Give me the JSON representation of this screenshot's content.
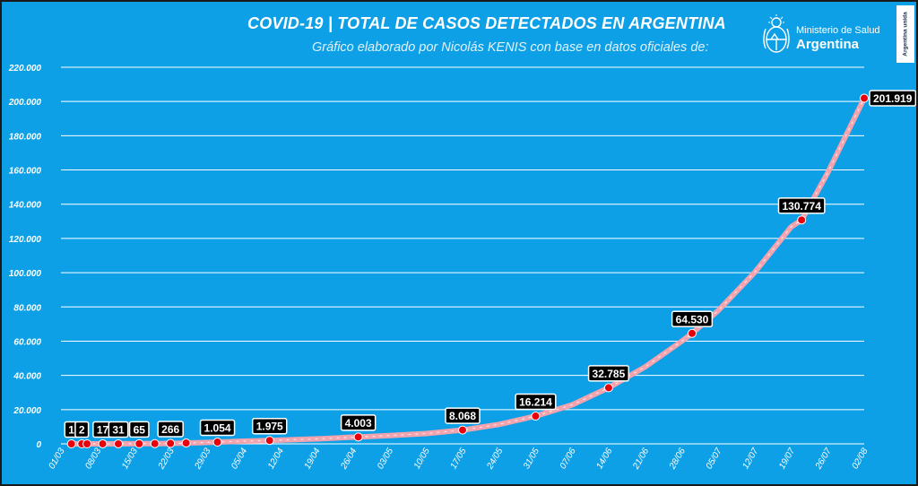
{
  "header": {
    "title": "COVID-19  |  TOTAL DE CASOS DETECTADOS EN ARGENTINA",
    "subtitle": "Gráfico elaborado por Nicolás KENIS con base en datos oficiales de:"
  },
  "logo": {
    "line1": "Ministerio de Salud",
    "line2": "Argentina",
    "icon": "argentina-coat-of-arms-icon"
  },
  "badge": {
    "text": "Argentina unida"
  },
  "colors": {
    "background": "#0ea0e6",
    "line": "#f3a3ad",
    "marker": "#e8000b",
    "label_box": "#000000",
    "grid": "#ffffff"
  },
  "chart_data": {
    "type": "line",
    "title": "COVID-19 | TOTAL DE CASOS DETECTADOS EN ARGENTINA",
    "xlabel": "",
    "ylabel": "",
    "ylim": [
      0,
      220000
    ],
    "y_ticks": [
      "0",
      "20.000",
      "40.000",
      "60.000",
      "80.000",
      "100.000",
      "120.000",
      "140.000",
      "160.000",
      "180.000",
      "200.000",
      "220.000"
    ],
    "x_range": [
      "01/03",
      "02/08"
    ],
    "x_ticks": [
      "01/03",
      "08/03",
      "15/03",
      "22/03",
      "29/03",
      "05/04",
      "12/04",
      "19/04",
      "26/04",
      "03/05",
      "10/05",
      "17/05",
      "24/05",
      "31/05",
      "07/06",
      "14/06",
      "21/06",
      "28/06",
      "05/07",
      "12/07",
      "19/07",
      "26/07",
      "02/08"
    ],
    "grid": true,
    "legend": "none",
    "series": [
      {
        "points": [
          {
            "x": "03/03",
            "y": 1
          },
          {
            "x": "05/03",
            "y": 2
          },
          {
            "x": "06/03",
            "y": 8
          },
          {
            "x": "07/03",
            "y": 9
          },
          {
            "x": "08/03",
            "y": 12
          },
          {
            "x": "09/03",
            "y": 17
          },
          {
            "x": "10/03",
            "y": 19
          },
          {
            "x": "11/03",
            "y": 21
          },
          {
            "x": "12/03",
            "y": 31
          },
          {
            "x": "13/03",
            "y": 34
          },
          {
            "x": "14/03",
            "y": 45
          },
          {
            "x": "15/03",
            "y": 56
          },
          {
            "x": "16/03",
            "y": 65
          },
          {
            "x": "17/03",
            "y": 79
          },
          {
            "x": "18/03",
            "y": 97
          },
          {
            "x": "19/03",
            "y": 128
          },
          {
            "x": "20/03",
            "y": 158
          },
          {
            "x": "21/03",
            "y": 225
          },
          {
            "x": "22/03",
            "y": 266
          },
          {
            "x": "23/03",
            "y": 301
          },
          {
            "x": "24/03",
            "y": 387
          },
          {
            "x": "25/03",
            "y": 502
          },
          {
            "x": "26/03",
            "y": 589
          },
          {
            "x": "27/03",
            "y": 690
          },
          {
            "x": "28/03",
            "y": 745
          },
          {
            "x": "29/03",
            "y": 820
          },
          {
            "x": "30/03",
            "y": 966
          },
          {
            "x": "31/03",
            "y": 1054
          },
          {
            "x": "05/04",
            "y": 1554
          },
          {
            "x": "10/04",
            "y": 1975
          },
          {
            "x": "15/04",
            "y": 2443
          },
          {
            "x": "20/04",
            "y": 3031
          },
          {
            "x": "25/04",
            "y": 3780
          },
          {
            "x": "27/04",
            "y": 4003
          },
          {
            "x": "03/05",
            "y": 4887
          },
          {
            "x": "10/05",
            "y": 6034
          },
          {
            "x": "17/05",
            "y": 8068
          },
          {
            "x": "24/05",
            "y": 11353
          },
          {
            "x": "31/05",
            "y": 16214
          },
          {
            "x": "07/06",
            "y": 22794
          },
          {
            "x": "14/06",
            "y": 32785
          },
          {
            "x": "21/06",
            "y": 44931
          },
          {
            "x": "28/06",
            "y": 59933
          },
          {
            "x": "30/06",
            "y": 64530
          },
          {
            "x": "05/07",
            "y": 77815
          },
          {
            "x": "12/07",
            "y": 100166
          },
          {
            "x": "19/07",
            "y": 126755
          },
          {
            "x": "21/07",
            "y": 130774
          },
          {
            "x": "26/07",
            "y": 158334
          },
          {
            "x": "02/08",
            "y": 201919
          }
        ]
      }
    ],
    "markers": [
      {
        "x": "03/03",
        "y": 1
      },
      {
        "x": "05/03",
        "y": 2
      },
      {
        "x": "06/03",
        "y": 8
      },
      {
        "x": "09/03",
        "y": 17
      },
      {
        "x": "12/03",
        "y": 31
      },
      {
        "x": "16/03",
        "y": 65
      },
      {
        "x": "19/03",
        "y": 128
      },
      {
        "x": "22/03",
        "y": 266
      },
      {
        "x": "25/03",
        "y": 502
      },
      {
        "x": "31/03",
        "y": 1054
      },
      {
        "x": "10/04",
        "y": 1975
      },
      {
        "x": "27/04",
        "y": 4003
      },
      {
        "x": "17/05",
        "y": 8068
      },
      {
        "x": "31/05",
        "y": 16214
      },
      {
        "x": "14/06",
        "y": 32785
      },
      {
        "x": "30/06",
        "y": 64530
      },
      {
        "x": "21/07",
        "y": 130774
      },
      {
        "x": "02/08",
        "y": 201919
      }
    ],
    "data_labels": [
      {
        "x": "03/03",
        "y": 1,
        "text": "1"
      },
      {
        "x": "05/03",
        "y": 2,
        "text": "2"
      },
      {
        "x": "09/03",
        "y": 17,
        "text": "17"
      },
      {
        "x": "12/03",
        "y": 31,
        "text": "31"
      },
      {
        "x": "16/03",
        "y": 65,
        "text": "65"
      },
      {
        "x": "22/03",
        "y": 266,
        "text": "266"
      },
      {
        "x": "31/03",
        "y": 1054,
        "text": "1.054"
      },
      {
        "x": "10/04",
        "y": 1975,
        "text": "1.975"
      },
      {
        "x": "27/04",
        "y": 4003,
        "text": "4.003"
      },
      {
        "x": "17/05",
        "y": 8068,
        "text": "8.068"
      },
      {
        "x": "31/05",
        "y": 16214,
        "text": "16.214"
      },
      {
        "x": "14/06",
        "y": 32785,
        "text": "32.785"
      },
      {
        "x": "30/06",
        "y": 64530,
        "text": "64.530"
      },
      {
        "x": "21/07",
        "y": 130774,
        "text": "130.774"
      },
      {
        "x": "02/08",
        "y": 201919,
        "text": "201.919"
      }
    ]
  }
}
